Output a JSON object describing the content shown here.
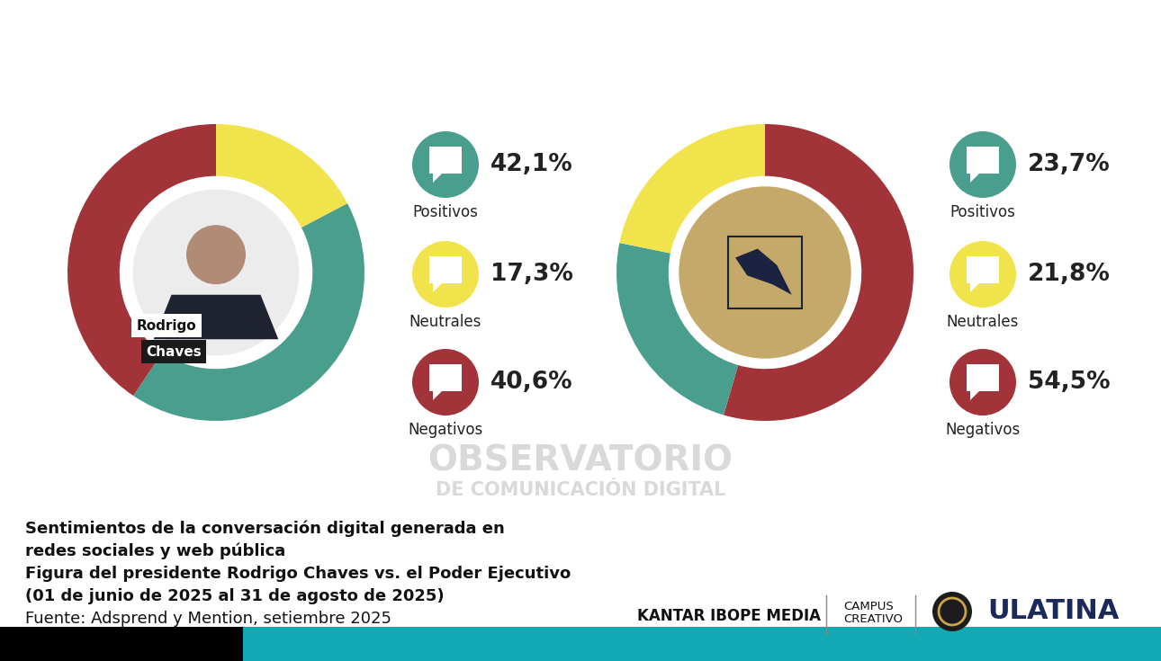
{
  "chart_data": [
    {
      "type": "pie",
      "center_label": [
        "Rodrigo",
        "Chaves"
      ],
      "categories": [
        "Positivos",
        "Neutrales",
        "Negativos"
      ],
      "values": [
        42.1,
        17.3,
        40.6
      ],
      "value_labels": [
        "42,1%",
        "17,3%",
        "40,6%"
      ],
      "colors": [
        "#4a9e8e",
        "#f1e34c",
        "#a23338"
      ],
      "data_labels": true
    },
    {
      "type": "pie",
      "categories": [
        "Positivos",
        "Neutrales",
        "Negativos"
      ],
      "values": [
        23.7,
        21.8,
        54.5
      ],
      "value_labels": [
        "23,7%",
        "21,8%",
        "54,5%"
      ],
      "colors": [
        "#4a9e8e",
        "#f1e34c",
        "#a23338"
      ],
      "data_labels": true
    }
  ],
  "title": [
    "Sentimientos de la conversación digital generada en",
    "redes sociales y web pública",
    "Figura del presidente Rodrigo Chaves vs. el Poder Ejecutivo",
    "(01 de junio de 2025 al 31 de agosto de 2025)"
  ],
  "source": "Fuente: Adsprend y Mention, setiembre 2025",
  "watermark": [
    "OBSERVATORIO",
    "DE COMUNICACIÓN DIGITAL"
  ],
  "logos": [
    "KANTAR IBOPE MEDIA",
    [
      "CAMPUS",
      "CREATIVO"
    ],
    "ULATINA"
  ]
}
